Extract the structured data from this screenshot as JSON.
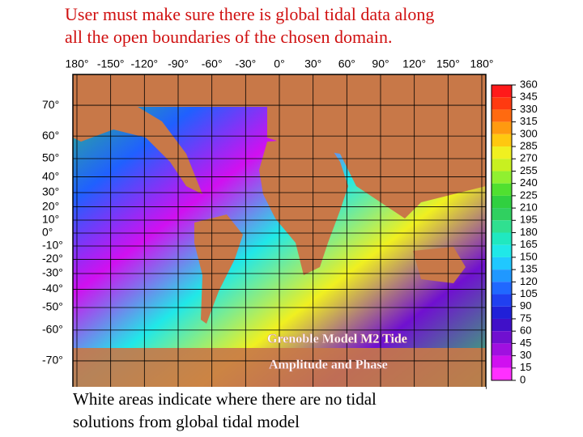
{
  "title_lines": [
    "User must make sure there is global tidal data along",
    "all the open boundaries of the chosen domain."
  ],
  "map": {
    "lon_ticks": [
      {
        "value": -180,
        "label": "180°"
      },
      {
        "value": -150,
        "label": "-150°"
      },
      {
        "value": -120,
        "label": "-120°"
      },
      {
        "value": -90,
        "label": "-90°"
      },
      {
        "value": -60,
        "label": "-60°"
      },
      {
        "value": -30,
        "label": "-30°"
      },
      {
        "value": 0,
        "label": "0°"
      },
      {
        "value": 30,
        "label": "30°"
      },
      {
        "value": 60,
        "label": "60°"
      },
      {
        "value": 90,
        "label": "90°"
      },
      {
        "value": 120,
        "label": "120°"
      },
      {
        "value": 150,
        "label": "150°"
      },
      {
        "value": 180,
        "label": "180°"
      }
    ],
    "lat_ticks": [
      {
        "value": 70,
        "label": "70°"
      },
      {
        "value": 60,
        "label": "60°"
      },
      {
        "value": 50,
        "label": "50°"
      },
      {
        "value": 40,
        "label": "40°"
      },
      {
        "value": 30,
        "label": "30°"
      },
      {
        "value": 20,
        "label": "20°"
      },
      {
        "value": 10,
        "label": "10°"
      },
      {
        "value": 0,
        "label": "0°"
      },
      {
        "value": -10,
        "label": "-10°"
      },
      {
        "value": -20,
        "label": "-20°"
      },
      {
        "value": -30,
        "label": "-30°"
      },
      {
        "value": -40,
        "label": "-40°"
      },
      {
        "value": -50,
        "label": "-50°"
      },
      {
        "value": -60,
        "label": "-60°"
      },
      {
        "value": -70,
        "label": "-70°"
      }
    ],
    "overlay_lines": [
      "Grenoble Model M2 Tide",
      "Amplitude and Phase"
    ]
  },
  "colorbar": {
    "ticks": [
      360,
      345,
      330,
      315,
      300,
      285,
      270,
      255,
      240,
      225,
      210,
      195,
      180,
      165,
      150,
      135,
      120,
      105,
      90,
      75,
      60,
      45,
      30,
      15,
      0
    ],
    "colors": [
      "#ff1a1a",
      "#ff3a10",
      "#ff6a10",
      "#ff9a10",
      "#ffc810",
      "#f0f020",
      "#c8f020",
      "#90f030",
      "#50e030",
      "#30d040",
      "#30d060",
      "#30e090",
      "#20e8c0",
      "#20e8e8",
      "#20c8ff",
      "#2098ff",
      "#2068ff",
      "#2040f0",
      "#2020d8",
      "#4010c8",
      "#7010d0",
      "#a010e0",
      "#d010f0",
      "#ff30ff"
    ]
  },
  "caption_lines": [
    "White areas indicate where there are no tidal",
    "solutions from global tidal model"
  ]
}
